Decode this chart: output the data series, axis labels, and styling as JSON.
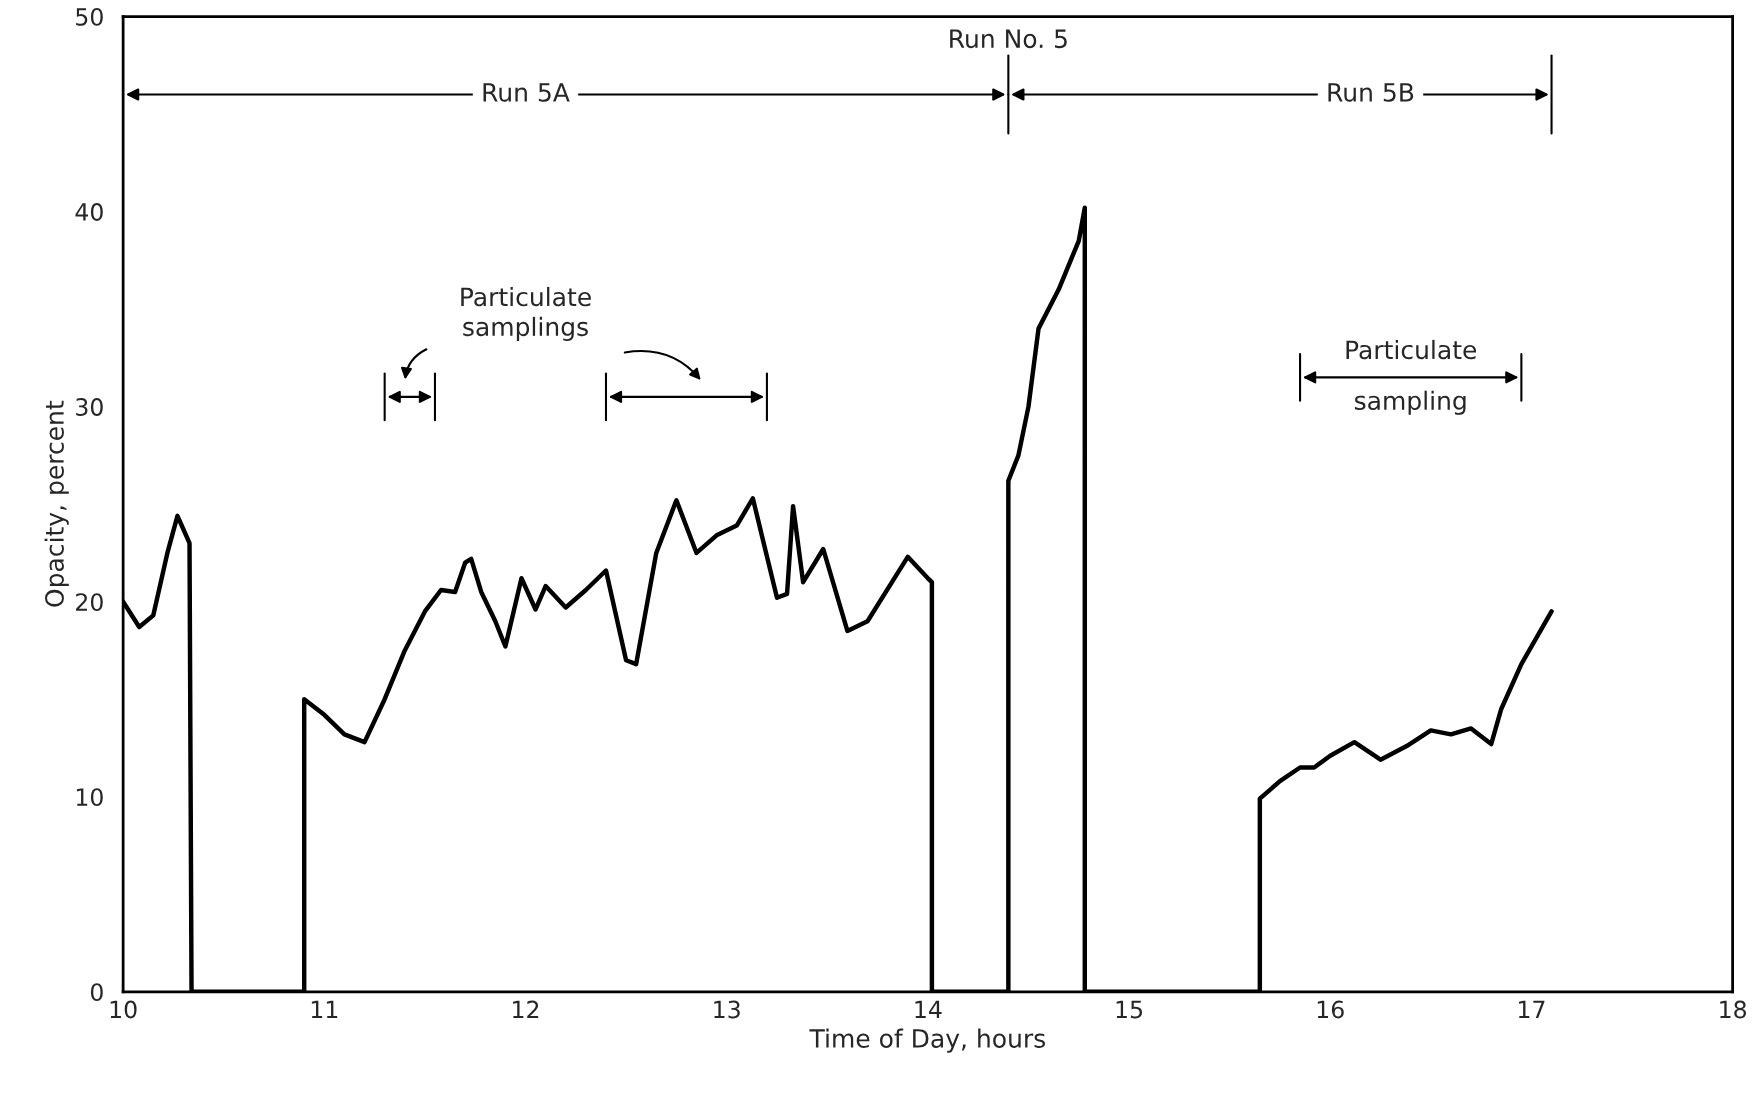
{
  "chart_data": {
    "type": "line",
    "xlabel": "Time of Day, hours",
    "ylabel": "Opacity, percent",
    "series": [
      {
        "color": "#000000",
        "x": [
          10.0,
          10.08,
          10.15,
          10.22,
          10.27,
          10.33,
          10.34,
          10.9,
          10.9,
          11.0,
          11.1,
          11.2,
          11.3,
          11.4,
          11.5,
          11.58,
          11.65,
          11.7,
          11.73,
          11.78,
          11.85,
          11.9,
          11.98,
          12.05,
          12.1,
          12.2,
          12.3,
          12.4,
          12.5,
          12.55,
          12.65,
          12.75,
          12.85,
          12.95,
          13.05,
          13.13,
          13.25,
          13.3,
          13.33,
          13.38,
          13.48,
          13.6,
          13.7,
          13.9,
          14.0,
          14.02,
          14.02,
          14.4,
          14.4,
          14.45,
          14.5,
          14.55,
          14.65,
          14.75,
          14.78,
          14.78,
          15.65,
          15.65,
          15.75,
          15.85,
          15.92,
          16.0,
          16.12,
          16.25,
          16.38,
          16.5,
          16.6,
          16.7,
          16.8,
          16.85,
          16.95,
          17.1
        ],
        "values": [
          20,
          18.7,
          19.3,
          22.5,
          24.4,
          23,
          0,
          0,
          15,
          14.2,
          13.2,
          12.8,
          15,
          17.5,
          19.5,
          20.6,
          20.5,
          22,
          22.2,
          20.5,
          19,
          17.7,
          21.2,
          19.6,
          20.8,
          19.7,
          20.6,
          21.6,
          17,
          16.8,
          22.5,
          25.2,
          22.5,
          23.4,
          23.9,
          25.3,
          20.2,
          20.4,
          24.9,
          21,
          22.7,
          18.5,
          19,
          22.3,
          21.2,
          21,
          0,
          0,
          26.2,
          27.5,
          30,
          34,
          36,
          38.5,
          40.2,
          0,
          0,
          9.9,
          10.8,
          11.5,
          11.5,
          12.1,
          12.8,
          11.9,
          12.6,
          13.4,
          13.2,
          13.5,
          12.7,
          14.5,
          16.8,
          19.5
        ]
      }
    ],
    "xlim": [
      10,
      18
    ],
    "xticks": [
      10,
      11,
      12,
      13,
      14,
      15,
      16,
      17,
      18
    ],
    "ylim": [
      0,
      50
    ],
    "yticks": [
      0,
      10,
      20,
      30,
      40,
      50
    ],
    "grid": false,
    "legend": false,
    "marker": "none",
    "line_style": "solid",
    "annotations": [
      "Run No. 5",
      "Run 5A",
      "Run 5B",
      "Particulate\nsamplings",
      "Particulate\nsampling"
    ]
  }
}
